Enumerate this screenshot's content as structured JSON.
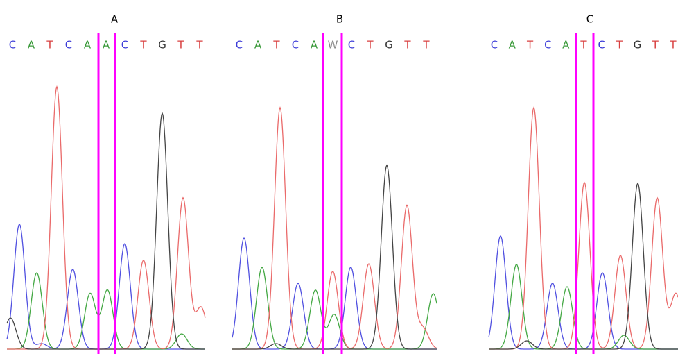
{
  "panels": [
    {
      "label": "A",
      "bases": [
        "C",
        "A",
        "T",
        "C",
        "A",
        "A",
        "C",
        "T",
        "G",
        "T",
        "T"
      ]
    },
    {
      "label": "B",
      "bases": [
        "C",
        "A",
        "T",
        "C",
        "A",
        "W",
        "C",
        "T",
        "G",
        "T",
        "T"
      ]
    },
    {
      "label": "C",
      "bases": [
        "C",
        "A",
        "T",
        "C",
        "A",
        "T",
        "C",
        "T",
        "G",
        "T",
        "T"
      ]
    }
  ]
}
